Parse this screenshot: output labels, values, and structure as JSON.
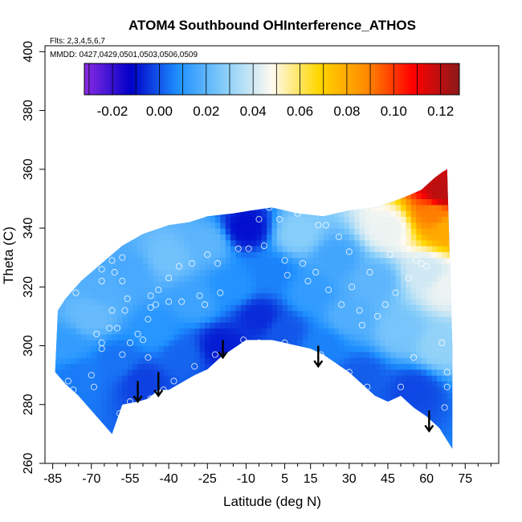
{
  "chart_data": {
    "type": "heatmap",
    "title": "ATOM4 Southbound OHInterference_ATHOS",
    "flights_note": "Flts: 2,3,4,5,6,7",
    "dates_note": "MMDD: 0427,0429,0501,0503,0506,0509",
    "xlabel": "Latitude (deg N)",
    "ylabel": "Theta (C)",
    "xlim": [
      -88,
      88
    ],
    "ylim": [
      260,
      402
    ],
    "x_ticks": [
      -85,
      -70,
      -55,
      -40,
      -25,
      -10,
      5,
      15,
      30,
      45,
      60,
      75
    ],
    "x_tick_labels": [
      "-85",
      "-70",
      "-55",
      "-40",
      "-25",
      "-10",
      "5",
      "15",
      "30",
      "45",
      "60",
      "75"
    ],
    "y_ticks": [
      260,
      280,
      300,
      320,
      340,
      360,
      380,
      400
    ],
    "y_tick_labels": [
      "260",
      "280",
      "300",
      "320",
      "340",
      "360",
      "380",
      "400"
    ],
    "colorbar": {
      "min": -0.032,
      "max": 0.128,
      "ticks": [
        -0.02,
        0.0,
        0.02,
        0.04,
        0.06,
        0.08,
        0.1,
        0.12
      ],
      "tick_labels": [
        "-0.02",
        "0.00",
        "0.02",
        "0.04",
        "0.06",
        "0.08",
        "0.10",
        "0.12"
      ],
      "colors": [
        "#8a2be2",
        "#0000c8",
        "#1e90ff",
        "#87cefa",
        "#fffaf0",
        "#ffd700",
        "#ff8c00",
        "#ff0000",
        "#8b1a1a"
      ]
    },
    "domain_boundary": {
      "lower": [
        [
          -84,
          291
        ],
        [
          -80,
          287
        ],
        [
          -75,
          283
        ],
        [
          -68,
          276
        ],
        [
          -62,
          270
        ],
        [
          -58,
          280
        ],
        [
          -52,
          281
        ],
        [
          -48,
          282
        ],
        [
          -44,
          285
        ],
        [
          -40,
          285
        ],
        [
          -36,
          287
        ],
        [
          -30,
          290
        ],
        [
          -25,
          292
        ],
        [
          -20,
          296
        ],
        [
          -15,
          299
        ],
        [
          -10,
          302
        ],
        [
          -5,
          302
        ],
        [
          0,
          302
        ],
        [
          5,
          301
        ],
        [
          10,
          300
        ],
        [
          15,
          299
        ],
        [
          20,
          297
        ],
        [
          25,
          294
        ],
        [
          30,
          291
        ],
        [
          35,
          287
        ],
        [
          40,
          283
        ],
        [
          45,
          281
        ],
        [
          50,
          283
        ],
        [
          55,
          279
        ],
        [
          60,
          276
        ],
        [
          65,
          272
        ],
        [
          70,
          265
        ]
      ],
      "upper": [
        [
          -84,
          292
        ],
        [
          -83,
          312
        ],
        [
          -80,
          316
        ],
        [
          -74,
          322
        ],
        [
          -66,
          328
        ],
        [
          -58,
          334
        ],
        [
          -50,
          338
        ],
        [
          -40,
          341
        ],
        [
          -32,
          342
        ],
        [
          -25,
          344
        ],
        [
          -15,
          345
        ],
        [
          -8,
          346
        ],
        [
          0,
          347
        ],
        [
          10,
          345
        ],
        [
          20,
          344
        ],
        [
          30,
          346
        ],
        [
          40,
          347
        ],
        [
          50,
          350
        ],
        [
          58,
          353
        ],
        [
          63,
          357
        ],
        [
          66,
          359
        ],
        [
          68,
          360
        ],
        [
          70,
          300
        ]
      ]
    },
    "cells": [
      {
        "lat": -80,
        "theta": 300,
        "value": 0.012
      },
      {
        "lat": -75,
        "theta": 290,
        "value": 0.005
      },
      {
        "lat": -70,
        "theta": 310,
        "value": 0.022
      },
      {
        "lat": -65,
        "theta": 320,
        "value": 0.018
      },
      {
        "lat": -60,
        "theta": 295,
        "value": 0.004
      },
      {
        "lat": -55,
        "theta": 325,
        "value": 0.016
      },
      {
        "lat": -50,
        "theta": 288,
        "value": -0.003
      },
      {
        "lat": -45,
        "theta": 305,
        "value": 0.01
      },
      {
        "lat": -40,
        "theta": 330,
        "value": 0.024
      },
      {
        "lat": -35,
        "theta": 297,
        "value": 0.002
      },
      {
        "lat": -30,
        "theta": 315,
        "value": 0.014
      },
      {
        "lat": -25,
        "theta": 335,
        "value": 0.02
      },
      {
        "lat": -20,
        "theta": 300,
        "value": -0.008
      },
      {
        "lat": -15,
        "theta": 320,
        "value": 0.009
      },
      {
        "lat": -10,
        "theta": 340,
        "value": -0.01
      },
      {
        "lat": -5,
        "theta": 310,
        "value": -0.006
      },
      {
        "lat": 0,
        "theta": 325,
        "value": 0.006
      },
      {
        "lat": 5,
        "theta": 305,
        "value": 0.0
      },
      {
        "lat": 10,
        "theta": 338,
        "value": 0.028
      },
      {
        "lat": 15,
        "theta": 318,
        "value": 0.012
      },
      {
        "lat": 20,
        "theta": 300,
        "value": 0.006
      },
      {
        "lat": 25,
        "theta": 330,
        "value": 0.015
      },
      {
        "lat": 30,
        "theta": 310,
        "value": 0.018
      },
      {
        "lat": 35,
        "theta": 290,
        "value": 0.001
      },
      {
        "lat": 40,
        "theta": 322,
        "value": 0.02
      },
      {
        "lat": 45,
        "theta": 340,
        "value": 0.045
      },
      {
        "lat": 50,
        "theta": 305,
        "value": 0.025
      },
      {
        "lat": 55,
        "theta": 285,
        "value": -0.002
      },
      {
        "lat": 60,
        "theta": 325,
        "value": 0.04
      },
      {
        "lat": 63,
        "theta": 345,
        "value": 0.09
      },
      {
        "lat": 66,
        "theta": 352,
        "value": 0.12
      },
      {
        "lat": 68,
        "theta": 340,
        "value": 0.08
      },
      {
        "lat": 68,
        "theta": 320,
        "value": 0.045
      },
      {
        "lat": 65,
        "theta": 300,
        "value": 0.03
      }
    ],
    "sample_points": [
      {
        "lat": -84,
        "theta": 317
      },
      {
        "lat": -76,
        "theta": 318
      },
      {
        "lat": -79,
        "theta": 288
      },
      {
        "lat": -77,
        "theta": 285
      },
      {
        "lat": -70,
        "theta": 290
      },
      {
        "lat": -69,
        "theta": 286
      },
      {
        "lat": -68,
        "theta": 304
      },
      {
        "lat": -66,
        "theta": 301
      },
      {
        "lat": -66,
        "theta": 299
      },
      {
        "lat": -63,
        "theta": 306
      },
      {
        "lat": -66,
        "theta": 326
      },
      {
        "lat": -66,
        "theta": 322
      },
      {
        "lat": -67,
        "theta": 331
      },
      {
        "lat": -62,
        "theta": 329
      },
      {
        "lat": -61,
        "theta": 325
      },
      {
        "lat": -58,
        "theta": 330
      },
      {
        "lat": -58,
        "theta": 322
      },
      {
        "lat": -56,
        "theta": 316
      },
      {
        "lat": -57,
        "theta": 312
      },
      {
        "lat": -62,
        "theta": 312
      },
      {
        "lat": -60,
        "theta": 306
      },
      {
        "lat": -58,
        "theta": 297
      },
      {
        "lat": -55,
        "theta": 301
      },
      {
        "lat": -52,
        "theta": 304
      },
      {
        "lat": -50,
        "theta": 302
      },
      {
        "lat": -48,
        "theta": 296
      },
      {
        "lat": -48,
        "theta": 309
      },
      {
        "lat": -47,
        "theta": 313
      },
      {
        "lat": -47,
        "theta": 317
      },
      {
        "lat": -45,
        "theta": 314
      },
      {
        "lat": -44,
        "theta": 319
      },
      {
        "lat": -40,
        "theta": 315
      },
      {
        "lat": -40,
        "theta": 323
      },
      {
        "lat": -36,
        "theta": 327
      },
      {
        "lat": -35,
        "theta": 315
      },
      {
        "lat": -31,
        "theta": 328
      },
      {
        "lat": -28,
        "theta": 317
      },
      {
        "lat": -26,
        "theta": 314
      },
      {
        "lat": -25,
        "theta": 331
      },
      {
        "lat": -21,
        "theta": 328
      },
      {
        "lat": -20,
        "theta": 318
      },
      {
        "lat": -13,
        "theta": 333
      },
      {
        "lat": -9,
        "theta": 333
      },
      {
        "lat": -5,
        "theta": 343
      },
      {
        "lat": -3,
        "theta": 334
      },
      {
        "lat": -1,
        "theta": 347
      },
      {
        "lat": 3,
        "theta": 343
      },
      {
        "lat": 5,
        "theta": 329
      },
      {
        "lat": 6,
        "theta": 324
      },
      {
        "lat": 10,
        "theta": 345
      },
      {
        "lat": 12,
        "theta": 328
      },
      {
        "lat": 14,
        "theta": 322
      },
      {
        "lat": 17,
        "theta": 325
      },
      {
        "lat": 18,
        "theta": 341
      },
      {
        "lat": 21,
        "theta": 341
      },
      {
        "lat": 22,
        "theta": 319
      },
      {
        "lat": 26,
        "theta": 337
      },
      {
        "lat": 27,
        "theta": 314
      },
      {
        "lat": 30,
        "theta": 332
      },
      {
        "lat": 31,
        "theta": 320
      },
      {
        "lat": 34,
        "theta": 312
      },
      {
        "lat": 35,
        "theta": 307
      },
      {
        "lat": 38,
        "theta": 325
      },
      {
        "lat": 41,
        "theta": 310
      },
      {
        "lat": 44,
        "theta": 314
      },
      {
        "lat": 46,
        "theta": 331
      },
      {
        "lat": 48,
        "theta": 318
      },
      {
        "lat": 51,
        "theta": 336
      },
      {
        "lat": 53,
        "theta": 323
      },
      {
        "lat": 56,
        "theta": 329
      },
      {
        "lat": 58,
        "theta": 328
      },
      {
        "lat": 60,
        "theta": 327
      },
      {
        "lat": 55,
        "theta": 296
      },
      {
        "lat": 50,
        "theta": 286
      },
      {
        "lat": 44,
        "theta": 280
      },
      {
        "lat": 37,
        "theta": 286
      },
      {
        "lat": 30,
        "theta": 291
      },
      {
        "lat": 19,
        "theta": 297
      },
      {
        "lat": 14,
        "theta": 298
      },
      {
        "lat": 5,
        "theta": 301
      },
      {
        "lat": -5,
        "theta": 301
      },
      {
        "lat": -11,
        "theta": 302
      },
      {
        "lat": -22,
        "theta": 297
      },
      {
        "lat": -30,
        "theta": 293
      },
      {
        "lat": -38,
        "theta": 288
      },
      {
        "lat": -42,
        "theta": 285
      },
      {
        "lat": -47,
        "theta": 282
      },
      {
        "lat": -55,
        "theta": 281
      },
      {
        "lat": -59,
        "theta": 277
      },
      {
        "lat": -64,
        "theta": 269
      },
      {
        "lat": 66,
        "theta": 301
      },
      {
        "lat": 68,
        "theta": 286
      },
      {
        "lat": 67,
        "theta": 279
      },
      {
        "lat": 68,
        "theta": 291
      }
    ],
    "arrows": [
      {
        "lat": -52,
        "theta_top": 288,
        "theta_tip": 281
      },
      {
        "lat": -44,
        "theta_top": 291,
        "theta_tip": 283
      },
      {
        "lat": -19,
        "theta_top": 302,
        "theta_tip": 296
      },
      {
        "lat": 18,
        "theta_top": 300,
        "theta_tip": 293
      },
      {
        "lat": 61,
        "theta_top": 278,
        "theta_tip": 271
      }
    ]
  }
}
